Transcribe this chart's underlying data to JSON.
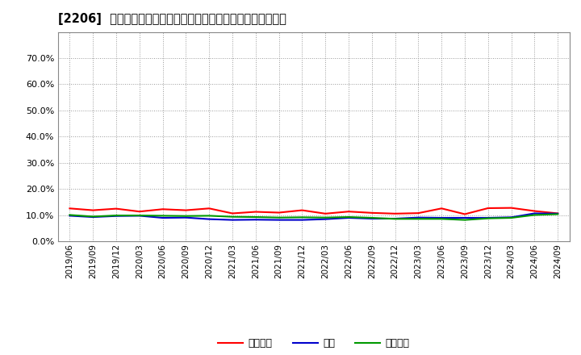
{
  "title": "[2206]  売上債権、在庫、買入債務の総資産に対する比率の推移",
  "legend_labels": [
    "売上債権",
    "在庫",
    "買入債務"
  ],
  "line_colors": [
    "#ff0000",
    "#0000cc",
    "#009900"
  ],
  "ylim": [
    0.0,
    0.8
  ],
  "yticks": [
    0.0,
    0.1,
    0.2,
    0.3,
    0.4,
    0.5,
    0.6,
    0.7
  ],
  "dates": [
    "2019/06",
    "2019/09",
    "2019/12",
    "2020/03",
    "2020/06",
    "2020/09",
    "2020/12",
    "2021/03",
    "2021/06",
    "2021/09",
    "2021/12",
    "2022/03",
    "2022/06",
    "2022/09",
    "2022/12",
    "2023/03",
    "2023/06",
    "2023/09",
    "2023/12",
    "2024/03",
    "2024/06",
    "2024/09"
  ],
  "売上債権": [
    0.126,
    0.119,
    0.125,
    0.114,
    0.123,
    0.119,
    0.126,
    0.107,
    0.113,
    0.11,
    0.119,
    0.106,
    0.114,
    0.109,
    0.106,
    0.108,
    0.126,
    0.104,
    0.127,
    0.128,
    0.116,
    0.107
  ],
  "在庫": [
    0.098,
    0.093,
    0.097,
    0.098,
    0.09,
    0.091,
    0.085,
    0.082,
    0.083,
    0.082,
    0.082,
    0.085,
    0.09,
    0.087,
    0.087,
    0.091,
    0.09,
    0.09,
    0.09,
    0.092,
    0.107,
    0.106
  ],
  "買入債務": [
    0.101,
    0.095,
    0.099,
    0.099,
    0.098,
    0.097,
    0.098,
    0.094,
    0.093,
    0.091,
    0.092,
    0.091,
    0.093,
    0.09,
    0.086,
    0.086,
    0.086,
    0.082,
    0.088,
    0.09,
    0.101,
    0.104
  ],
  "background_color": "#ffffff",
  "grid_color": "#aaaaaa",
  "plot_bg_color": "#ffffff"
}
